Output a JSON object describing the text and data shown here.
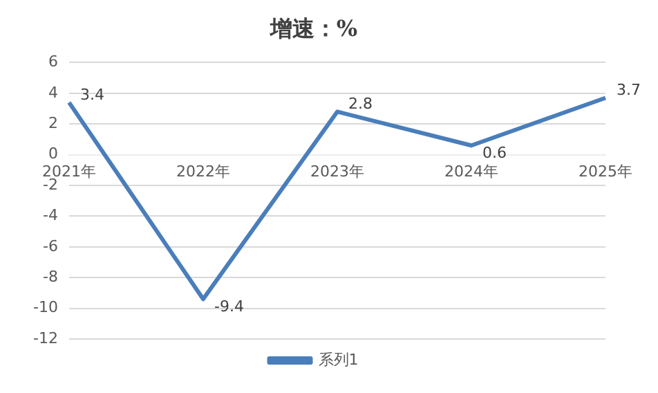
{
  "chart_data": {
    "type": "line",
    "title": "增速：%",
    "categories": [
      "2021年",
      "2022年",
      "2023年",
      "2024年",
      "2025年"
    ],
    "series": [
      {
        "name": "系列1",
        "color": "#4a7ebb",
        "values": [
          3.4,
          -9.4,
          2.8,
          0.6,
          3.7
        ]
      }
    ],
    "ylim": [
      -12,
      6
    ],
    "yticks": [
      -12,
      -10,
      -8,
      -6,
      -4,
      -2,
      0,
      2,
      4,
      6
    ],
    "grid": "y",
    "legend": "bottom",
    "data_labels": true,
    "marker": "none",
    "line_style": "solid"
  }
}
